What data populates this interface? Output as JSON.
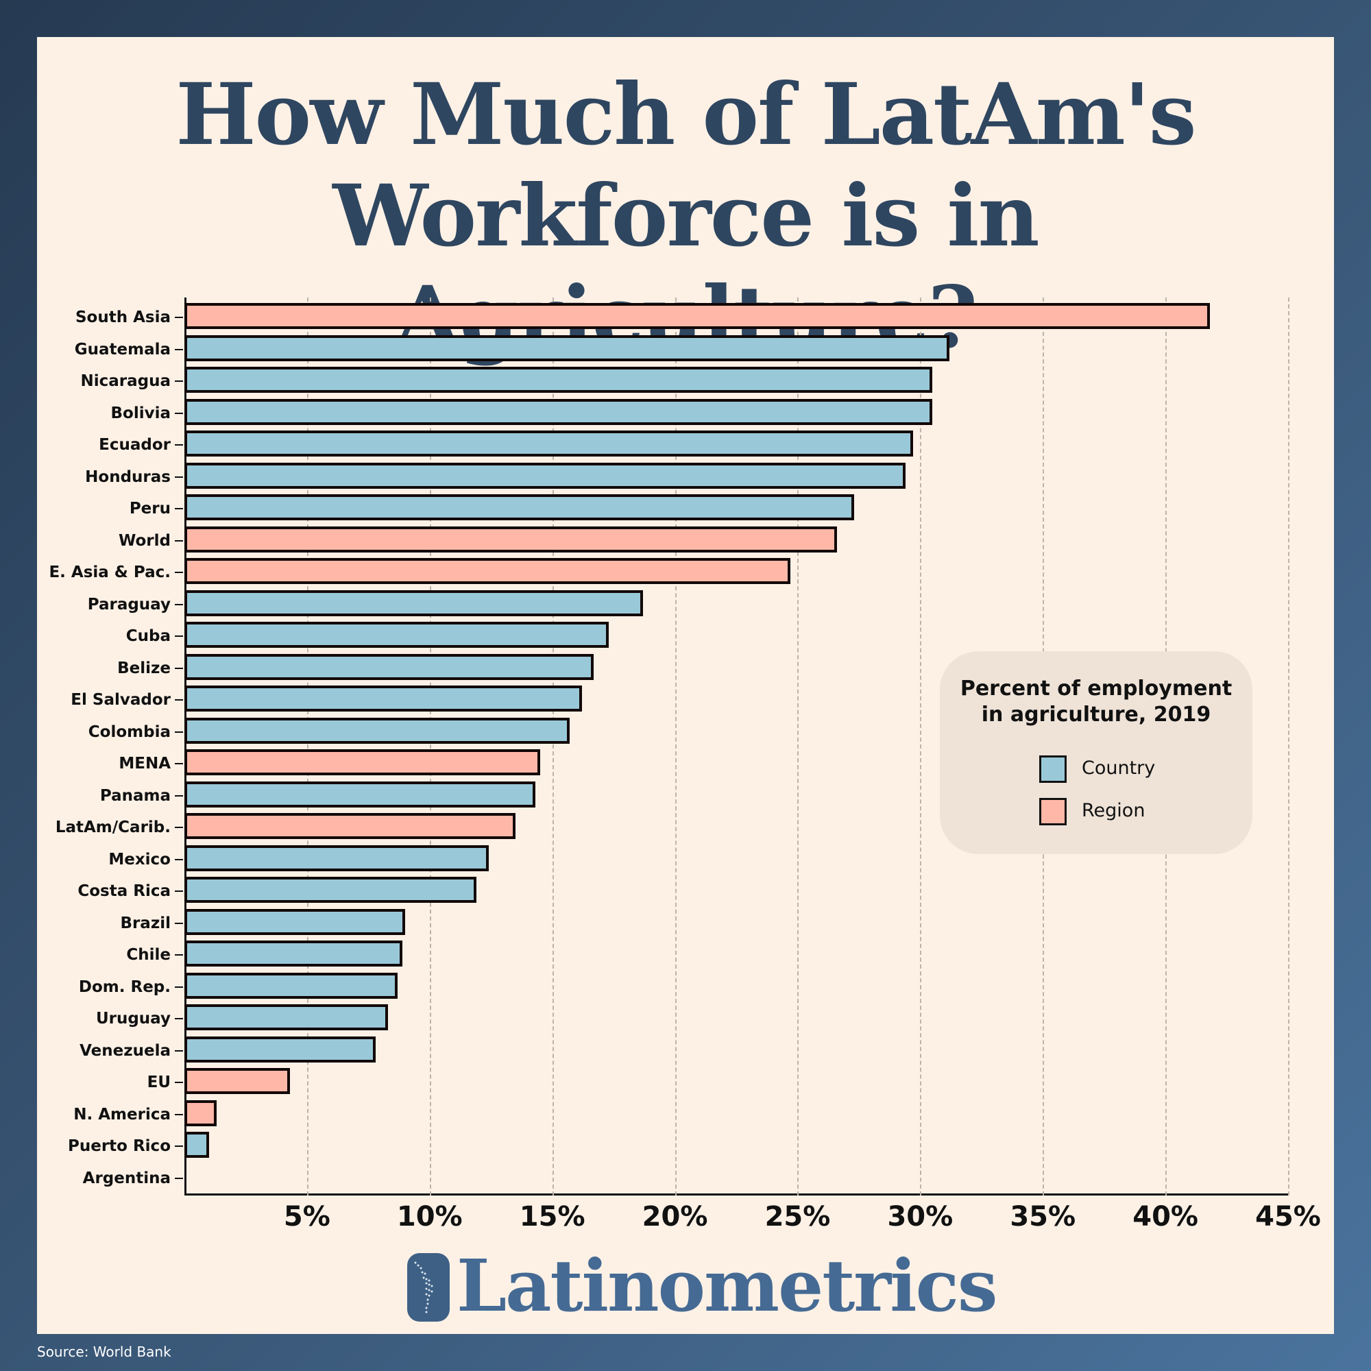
{
  "title": {
    "line1": "How Much of LatAm's",
    "line2": "Workforce is in Agriculture?"
  },
  "legend": {
    "title_line1": "Percent of employment",
    "title_line2": "in agriculture, 2019",
    "items": [
      {
        "label": "Country",
        "color": "#99c9d8"
      },
      {
        "label": "Region",
        "color": "#ffb8a8"
      }
    ]
  },
  "colors": {
    "country": "#99c9d8",
    "region": "#ffb8a8",
    "title": "#2f4660",
    "card": "#fdf1e6"
  },
  "x_ticks": [
    "5%",
    "10%",
    "15%",
    "20%",
    "25%",
    "30%",
    "35%",
    "40%",
    "45%"
  ],
  "chart_data": {
    "type": "bar",
    "orientation": "horizontal",
    "title": "How Much of LatAm's Workforce is in Agriculture?",
    "subtitle": "Percent of employment in agriculture, 2019",
    "xlabel": "",
    "ylabel": "",
    "xlim": [
      0,
      45
    ],
    "x_ticks": [
      5,
      10,
      15,
      20,
      25,
      30,
      35,
      40,
      45
    ],
    "grid": "vertical dashed",
    "legend_position": "right-middle",
    "categories": [
      "South Asia",
      "Guatemala",
      "Nicaragua",
      "Bolivia",
      "Ecuador",
      "Honduras",
      "Peru",
      "World",
      "E. Asia & Pac.",
      "Paraguay",
      "Cuba",
      "Belize",
      "El Salvador",
      "Colombia",
      "MENA",
      "Panama",
      "LatAm/Carib.",
      "Mexico",
      "Costa Rica",
      "Brazil",
      "Chile",
      "Dom. Rep.",
      "Uruguay",
      "Venezuela",
      "EU",
      "N. America",
      "Puerto Rico",
      "Argentina"
    ],
    "values": [
      41.8,
      31.2,
      30.5,
      30.5,
      29.7,
      29.4,
      27.3,
      26.6,
      24.7,
      18.7,
      17.3,
      16.7,
      16.2,
      15.7,
      14.5,
      14.3,
      13.5,
      12.4,
      11.9,
      9.0,
      8.9,
      8.7,
      8.3,
      7.8,
      4.3,
      1.3,
      1.0,
      0.0
    ],
    "types": [
      "Region",
      "Country",
      "Country",
      "Country",
      "Country",
      "Country",
      "Country",
      "Region",
      "Region",
      "Country",
      "Country",
      "Country",
      "Country",
      "Country",
      "Region",
      "Country",
      "Region",
      "Country",
      "Country",
      "Country",
      "Country",
      "Country",
      "Country",
      "Country",
      "Region",
      "Region",
      "Country",
      "Country"
    ]
  },
  "logo": {
    "text": "Latinometrics"
  },
  "source": "Source: World Bank"
}
